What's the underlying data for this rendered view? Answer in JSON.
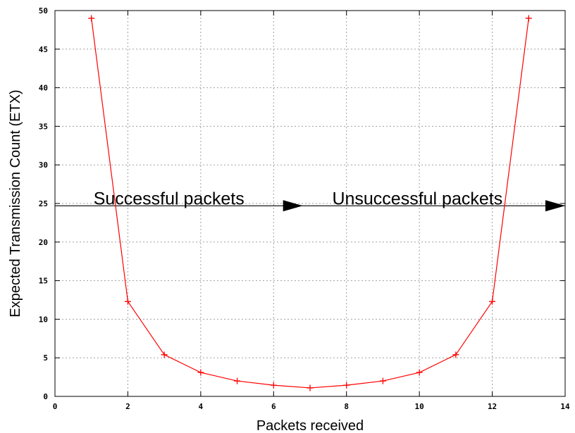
{
  "chart_data": {
    "type": "line",
    "title": "",
    "xlabel": "Packets received",
    "ylabel": "Expected Transmission Count (ETX)",
    "xlim": [
      0,
      14
    ],
    "ylim": [
      0,
      50
    ],
    "xticks": [
      0,
      2,
      4,
      6,
      8,
      10,
      12,
      14
    ],
    "yticks": [
      0,
      5,
      10,
      15,
      20,
      25,
      30,
      35,
      40,
      45,
      50
    ],
    "grid": true,
    "series": [
      {
        "color": "#ff0000",
        "marker": "plus",
        "x": [
          1,
          2,
          3,
          4,
          5,
          6,
          7,
          8,
          9,
          10,
          11,
          12,
          13
        ],
        "y": [
          49,
          12.3,
          5.4,
          3.1,
          2.0,
          1.45,
          1.1,
          1.45,
          2.0,
          3.1,
          5.4,
          12.3,
          49
        ]
      }
    ],
    "reference_line": {
      "y": 24.7,
      "color": "#000000"
    },
    "annotations": [
      {
        "text": "Successful packets",
        "x": 1.0,
        "y": 24.7,
        "arrow_at_x": 6.8
      },
      {
        "text": "Unsuccessful packets",
        "x": 7.55,
        "y": 24.7,
        "arrow_at_x": 14.0
      }
    ]
  }
}
